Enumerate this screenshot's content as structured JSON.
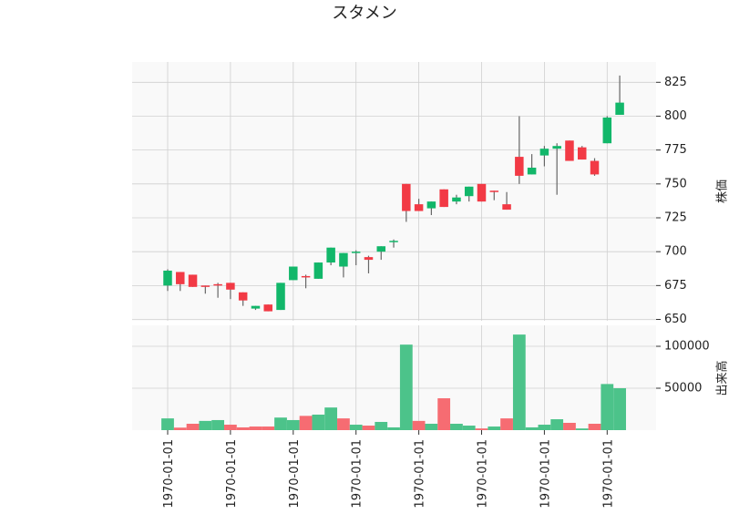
{
  "chart_data": {
    "type": "candlestick",
    "title": "スタメン",
    "categories": [
      "1970-01-01",
      null,
      null,
      null,
      null,
      "1970-01-01",
      null,
      null,
      null,
      null,
      "1970-01-01",
      null,
      null,
      null,
      null,
      "1970-01-01",
      null,
      null,
      null,
      null,
      "1970-01-01",
      null,
      null,
      null,
      null,
      "1970-01-01",
      null,
      null,
      null,
      null,
      "1970-01-01",
      null,
      null,
      null,
      null,
      "1970-01-01",
      null
    ],
    "open": [
      675,
      685,
      683,
      675,
      676,
      677,
      670,
      658,
      661,
      657,
      679,
      682,
      680,
      692,
      689,
      699,
      696,
      700,
      707,
      750,
      735,
      732,
      746,
      737,
      741,
      750,
      745,
      735,
      770,
      757,
      771,
      776,
      782,
      777,
      767,
      780,
      801
    ],
    "high": [
      687,
      685,
      683,
      675,
      677,
      677,
      670,
      660,
      661,
      677,
      689,
      683,
      692,
      703,
      699,
      701,
      697,
      704,
      709,
      750,
      739,
      737,
      746,
      742,
      748,
      750,
      745,
      744,
      800,
      772,
      778,
      780,
      782,
      778,
      769,
      800,
      830
    ],
    "low": [
      671,
      671,
      674,
      669,
      666,
      665,
      660,
      657,
      656,
      657,
      679,
      673,
      680,
      690,
      681,
      690,
      684,
      694,
      703,
      722,
      730,
      727,
      733,
      735,
      737,
      737,
      738,
      731,
      750,
      757,
      763,
      742,
      767,
      768,
      756,
      780,
      801
    ],
    "close": [
      686,
      676,
      674,
      674,
      675,
      672,
      664,
      660,
      656,
      677,
      689,
      681,
      692,
      703,
      699,
      700,
      694,
      704,
      708,
      730,
      730,
      737,
      733,
      740,
      748,
      737,
      744,
      731,
      756,
      762,
      776,
      778,
      767,
      768,
      757,
      799,
      810
    ],
    "volume": [
      14000,
      3000,
      7600,
      11000,
      12000,
      6500,
      3300,
      4300,
      4300,
      15000,
      12000,
      17000,
      18500,
      27000,
      14000,
      6500,
      5400,
      9800,
      3300,
      102000,
      11000,
      7600,
      38000,
      7600,
      5400,
      2000,
      4300,
      14000,
      114000,
      3300,
      6500,
      13000,
      8700,
      2000,
      7600,
      55000,
      50000
    ],
    "volume_colors": [
      "#4cc38a",
      "#f66c72",
      "#f66c72",
      "#4cc38a",
      "#4cc38a",
      "#f66c72",
      "#f66c72",
      "#f66c72",
      "#f66c72",
      "#4cc38a",
      "#4cc38a",
      "#f66c72",
      "#4cc38a",
      "#4cc38a",
      "#f66c72",
      "#4cc38a",
      "#f66c72",
      "#4cc38a",
      "#4cc38a",
      "#4cc38a",
      "#f66c72",
      "#4cc38a",
      "#f66c72",
      "#4cc38a",
      "#4cc38a",
      "#f66c72",
      "#4cc38a",
      "#f66c72",
      "#4cc38a",
      "#4cc38a",
      "#4cc38a",
      "#4cc38a",
      "#f66c72",
      "#4cc38a",
      "#f66c72",
      "#4cc38a",
      "#4cc38a"
    ],
    "up_color": "#12b76a",
    "down_color": "#f23a45",
    "wick_color": "#666666",
    "ylabel": "株価",
    "ylim": [
      649,
      840
    ],
    "yticks": [
      650,
      675,
      700,
      725,
      750,
      775,
      800,
      825
    ],
    "volume_ylabel": "出来高",
    "volume_ylim": [
      0,
      125000
    ],
    "volume_yticks": [
      50000,
      100000
    ],
    "grid": true
  }
}
